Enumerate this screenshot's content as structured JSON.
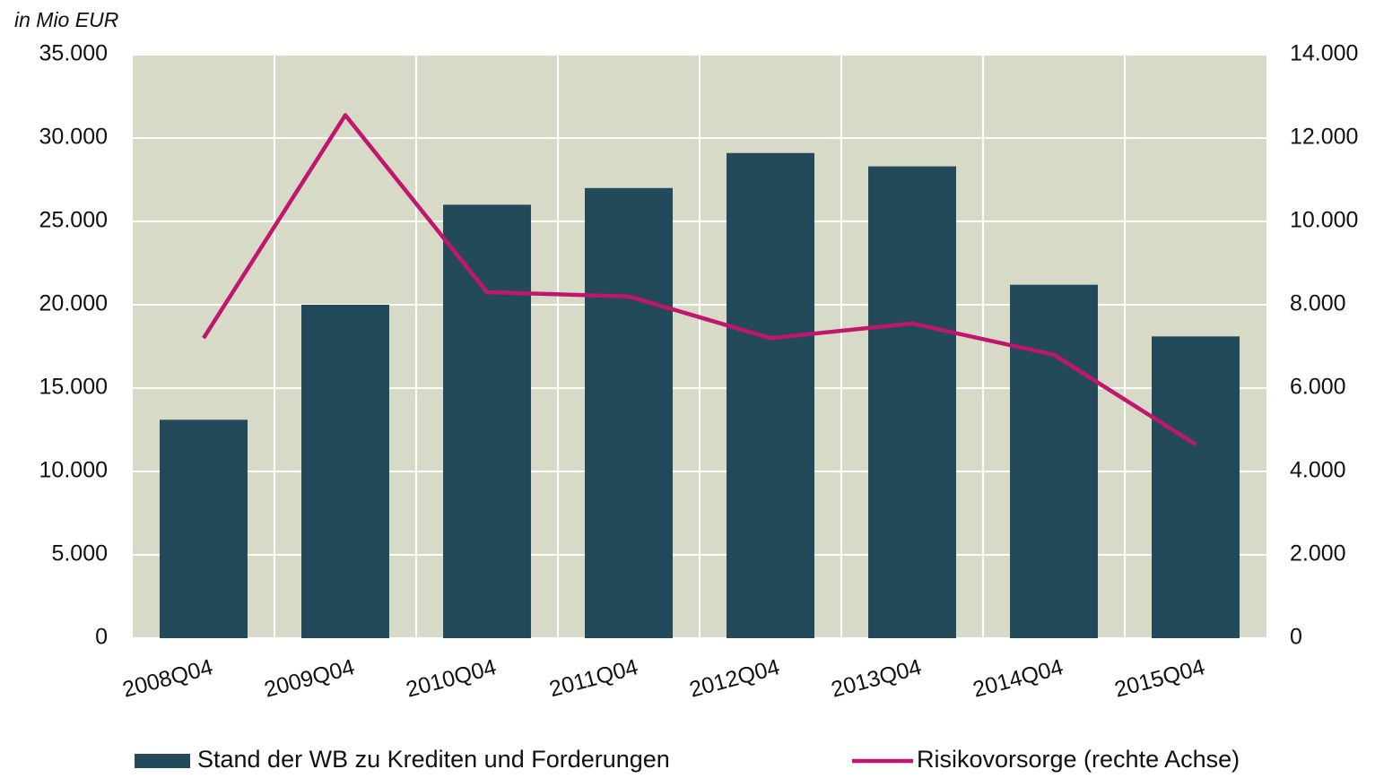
{
  "chart_data": {
    "type": "bar-line",
    "unit_label": "in Mio EUR",
    "categories": [
      "2008Q04",
      "2009Q04",
      "2010Q04",
      "2011Q04",
      "2012Q04",
      "2013Q04",
      "2014Q04",
      "2015Q04"
    ],
    "series": [
      {
        "name": "Stand der WB zu Krediten und Forderungen",
        "type": "bar",
        "color": "#234a5a",
        "values": [
          13100,
          20000,
          26000,
          27000,
          29100,
          28300,
          21200,
          18100
        ]
      },
      {
        "name": "Risikovorsorge (rechte Achse)",
        "type": "line",
        "axis": "y2",
        "color": "#c0166e",
        "values": [
          7200,
          12550,
          8300,
          8200,
          7200,
          7550,
          6800,
          4650
        ]
      }
    ],
    "ylim": [
      0,
      35000
    ],
    "yticks": [
      0,
      {
        "value": 5000,
        "label": "5.000"
      },
      {
        "value": 10000,
        "label": "10.000"
      },
      {
        "value": 15000,
        "label": "15.000"
      },
      {
        "value": 20000,
        "label": "20.000"
      },
      {
        "value": 25000,
        "label": "25.000"
      },
      {
        "value": 30000,
        "label": "30.000"
      },
      {
        "value": 35000,
        "label": "35.000"
      }
    ],
    "y2lim": [
      0,
      14000
    ],
    "y2ticks": [
      0,
      {
        "value": 2000,
        "label": "2.000"
      },
      {
        "value": 4000,
        "label": "4.000"
      },
      {
        "value": 6000,
        "label": "6.000"
      },
      {
        "value": 8000,
        "label": "8.000"
      },
      {
        "value": 10000,
        "label": "10.000"
      },
      {
        "value": 12000,
        "label": "12.000"
      },
      {
        "value": 14000,
        "label": "14.000"
      }
    ],
    "grid": true,
    "plot_background": "#d6dac6",
    "legend": "bottom"
  }
}
